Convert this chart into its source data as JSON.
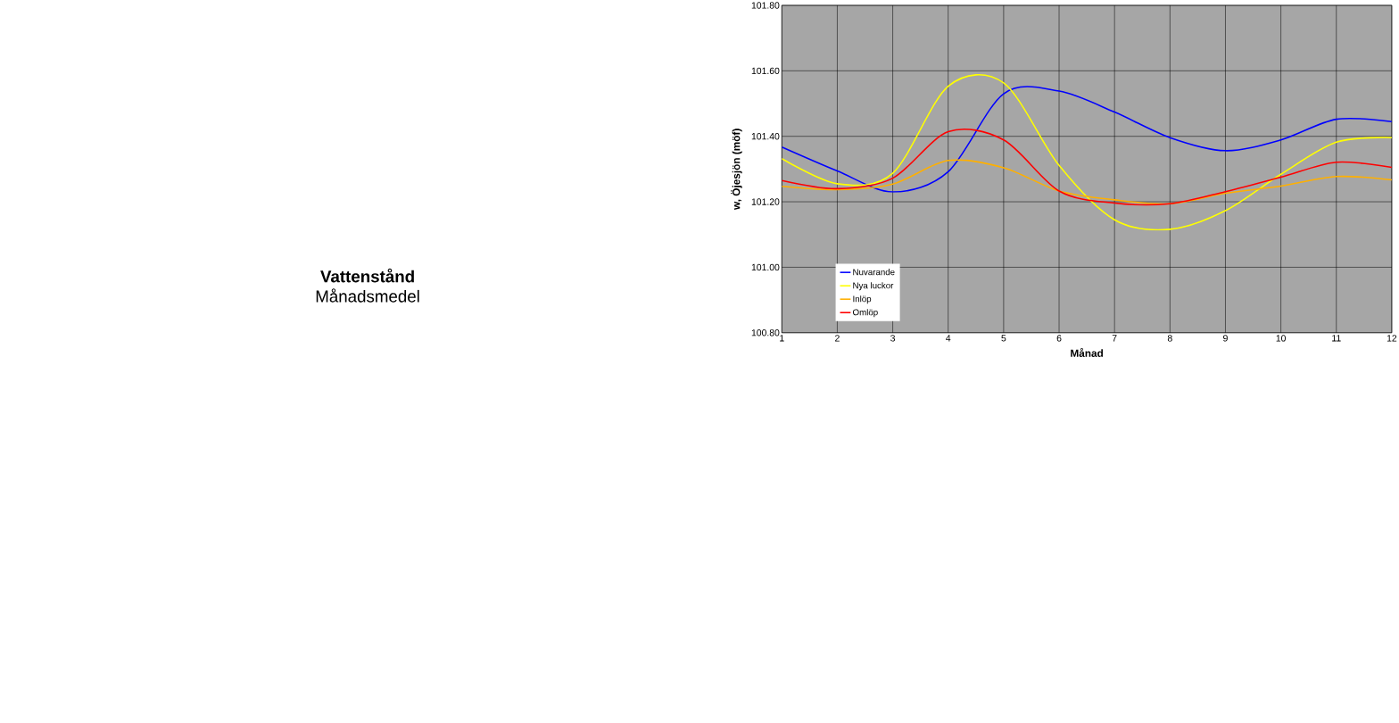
{
  "chart_data": {
    "type": "line",
    "title": "Vattenstånd",
    "subtitle": "Månadsmedel",
    "xlabel": "Månad",
    "ylabel": "w, Öjesjön (möf)",
    "x": [
      1,
      2,
      3,
      4,
      5,
      6,
      7,
      8,
      9,
      10,
      11,
      12
    ],
    "series": [
      {
        "name": "Nuvarande",
        "color": "#0000ff",
        "values": [
          101.367,
          101.294,
          101.23,
          101.292,
          101.53,
          101.538,
          101.474,
          101.396,
          101.356,
          101.389,
          101.452,
          101.445
        ]
      },
      {
        "name": "Nya luckor",
        "color": "#ffff00",
        "values": [
          101.332,
          101.255,
          101.287,
          101.553,
          101.563,
          101.311,
          101.145,
          101.116,
          101.173,
          101.284,
          101.382,
          101.396
        ]
      },
      {
        "name": "Inlöp",
        "color": "#ffb000",
        "values": [
          101.247,
          101.237,
          101.254,
          101.326,
          101.304,
          101.233,
          101.206,
          101.194,
          101.226,
          101.248,
          101.277,
          101.267
        ]
      },
      {
        "name": "Omlöp",
        "color": "#ff0000",
        "values": [
          101.265,
          101.24,
          101.272,
          101.414,
          101.389,
          101.233,
          101.196,
          101.194,
          101.231,
          101.275,
          101.321,
          101.305
        ]
      }
    ],
    "xlim": [
      1,
      12
    ],
    "ylim": [
      100.8,
      101.8
    ],
    "xticks": [
      1,
      2,
      3,
      4,
      5,
      6,
      7,
      8,
      9,
      10,
      11,
      12
    ],
    "yticks": [
      {
        "value": 100.8,
        "label": "100.80"
      },
      {
        "value": 101.0,
        "label": "101.00"
      },
      {
        "value": 101.2,
        "label": "101.20"
      },
      {
        "value": 101.4,
        "label": "101.40"
      },
      {
        "value": 101.6,
        "label": "101.60"
      },
      {
        "value": 101.8,
        "label": "101.80"
      }
    ],
    "grid": true,
    "legend": "bottom left",
    "marker": "none",
    "line_style": "solid"
  }
}
